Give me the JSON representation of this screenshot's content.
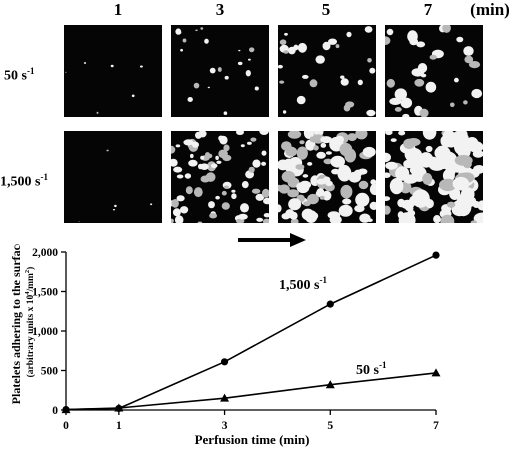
{
  "micrographs": {
    "time_labels": [
      "1",
      "3",
      "5",
      "7"
    ],
    "unit_label": "(min)",
    "rows": [
      {
        "label": "50 s",
        "superscript": "-1"
      },
      {
        "label": "1,500 s",
        "superscript": "-1"
      }
    ]
  },
  "chart_data": {
    "type": "line",
    "xlabel": "Perfusion time (min)",
    "ylabel": "Platelets adhering to the surface",
    "ylabel_sub": "(arbitrary units x 10",
    "ylabel_sub_sup": "4",
    "ylabel_sub_end": "/mm",
    "ylabel_sub_sup2": "2",
    "ylabel_sub_close": ")",
    "xlim": [
      0,
      7
    ],
    "ylim": [
      0,
      2000
    ],
    "xticks": [
      0,
      1,
      3,
      5,
      7
    ],
    "yticks": [
      0,
      500,
      1000,
      1500,
      2000
    ],
    "ytick_labels": [
      "0",
      "500",
      "1,000",
      "1,500",
      "2,000"
    ],
    "series": [
      {
        "name": "1,500 s",
        "name_sup": "-1",
        "marker": "circle",
        "x": [
          0,
          1,
          3,
          5,
          7
        ],
        "y": [
          5,
          20,
          610,
          1340,
          1960
        ]
      },
      {
        "name": "50 s",
        "name_sup": "-1",
        "marker": "triangle",
        "x": [
          0,
          1,
          3,
          5,
          7
        ],
        "y": [
          5,
          25,
          150,
          320,
          470
        ]
      }
    ]
  }
}
